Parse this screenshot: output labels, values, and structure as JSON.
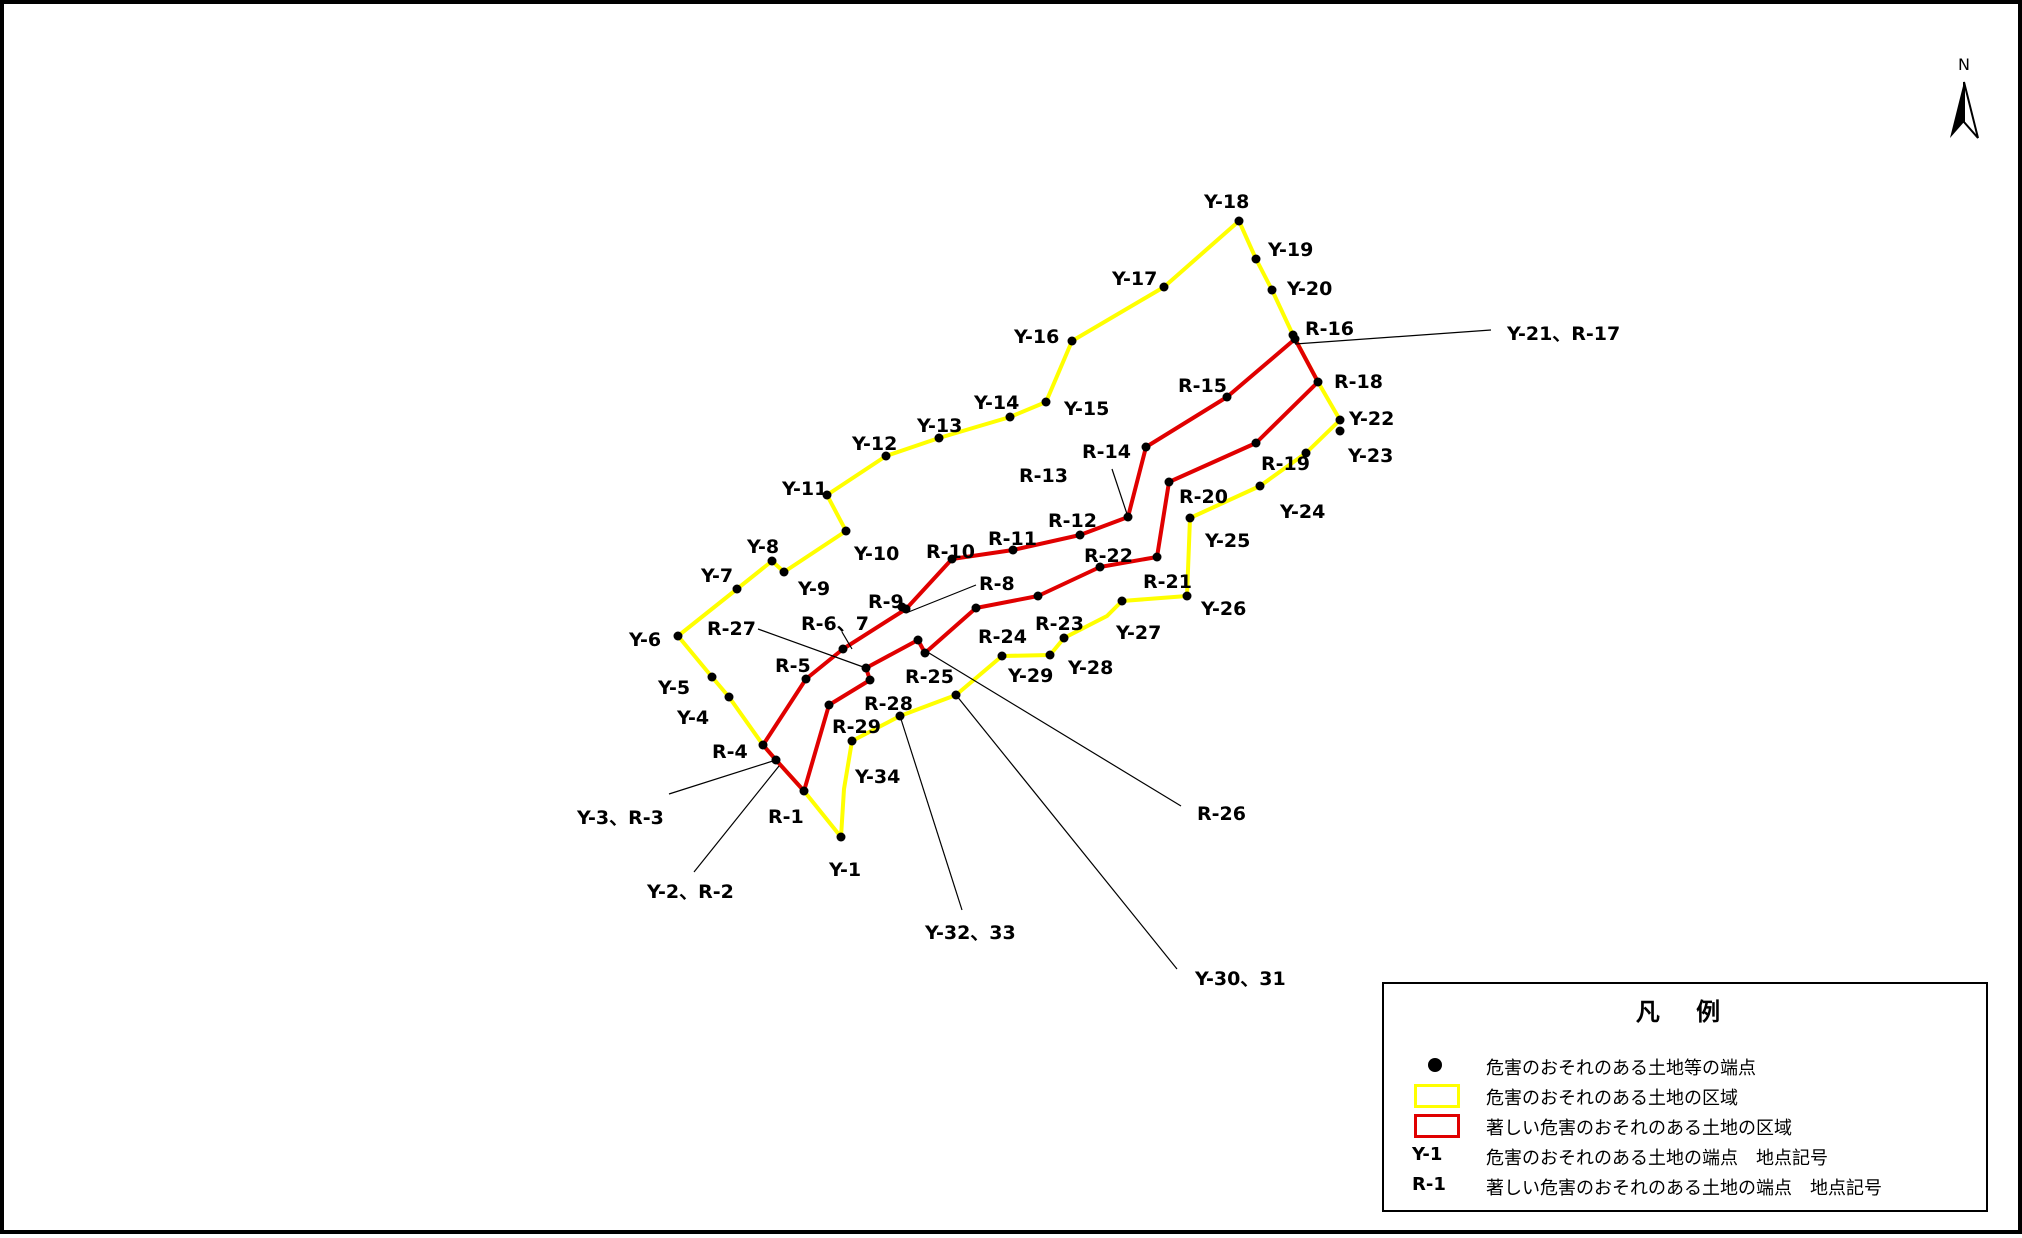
{
  "north_label": "N",
  "colors": {
    "yellow_zone": "#ffff00",
    "red_zone": "#e00000",
    "point": "#000000",
    "leader": "#000000"
  },
  "labels": [
    {
      "text": "Y-18"
    },
    {
      "text": "Y-19"
    },
    {
      "text": "Y-20"
    },
    {
      "text": "R-16"
    },
    {
      "text": "Y-21、R-17"
    },
    {
      "text": "Y-17"
    },
    {
      "text": "Y-16"
    },
    {
      "text": "R-15"
    },
    {
      "text": "R-18"
    },
    {
      "text": "Y-22"
    },
    {
      "text": "Y-23"
    },
    {
      "text": "Y-14"
    },
    {
      "text": "Y-15"
    },
    {
      "text": "Y-13"
    },
    {
      "text": "Y-12"
    },
    {
      "text": "R-14"
    },
    {
      "text": "R-19"
    },
    {
      "text": "R-13"
    },
    {
      "text": "Y-11"
    },
    {
      "text": "R-20"
    },
    {
      "text": "Y-24"
    },
    {
      "text": "R-12"
    },
    {
      "text": "R-11"
    },
    {
      "text": "Y-25"
    },
    {
      "text": "R-10"
    },
    {
      "text": "Y-10"
    },
    {
      "text": "Y-8"
    },
    {
      "text": "R-22"
    },
    {
      "text": "Y-7"
    },
    {
      "text": "R-8"
    },
    {
      "text": "Y-9"
    },
    {
      "text": "R-21"
    },
    {
      "text": "R-9"
    },
    {
      "text": "Y-26"
    },
    {
      "text": "R-6、7"
    },
    {
      "text": "R-27"
    },
    {
      "text": "R-23"
    },
    {
      "text": "Y-27"
    },
    {
      "text": "R-24"
    },
    {
      "text": "Y-6"
    },
    {
      "text": "R-5"
    },
    {
      "text": "Y-28"
    },
    {
      "text": "R-25"
    },
    {
      "text": "Y-29"
    },
    {
      "text": "Y-5"
    },
    {
      "text": "R-28"
    },
    {
      "text": "Y-4"
    },
    {
      "text": "R-29"
    },
    {
      "text": "R-4"
    },
    {
      "text": "Y-34"
    },
    {
      "text": "Y-3、R-3"
    },
    {
      "text": "R-1"
    },
    {
      "text": "R-26"
    },
    {
      "text": "Y-1"
    },
    {
      "text": "Y-2、R-2"
    },
    {
      "text": "Y-32、33"
    },
    {
      "text": "Y-30、31"
    }
  ],
  "legend": {
    "title": "凡 例",
    "items": [
      {
        "symbol": "dot",
        "text": "危害のおそれのある土地等の端点"
      },
      {
        "symbol": "yellow-box",
        "text": "危害のおそれのある土地の区域"
      },
      {
        "symbol": "red-box",
        "text": "著しい危害のおそれのある土地の区域"
      },
      {
        "symbol": "code",
        "code": "Y-1",
        "text": "危害のおそれのある土地の端点　地点記号"
      },
      {
        "symbol": "code",
        "code": "R-1",
        "text": "著しい危害のおそれのある土地の端点　地点記号"
      }
    ]
  }
}
